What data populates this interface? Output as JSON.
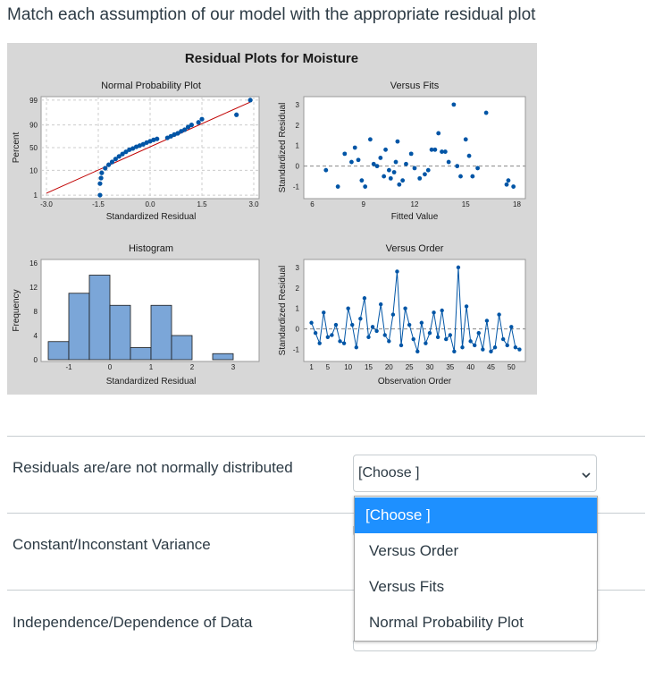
{
  "question": {
    "text": "Match each assumption of our model with the appropriate residual plot"
  },
  "figure": {
    "title": "Residual Plots for Moisture",
    "normal_probability_plot": {
      "title": "Normal Probability Plot",
      "ylabel": "Percent",
      "xlabel": "Standardized Residual",
      "y_ticks": [
        "99",
        "90",
        "50",
        "10",
        "1"
      ],
      "x_ticks": [
        "-3.0",
        "-1.5",
        "0.0",
        "1.5",
        "3.0"
      ]
    },
    "versus_fits": {
      "title": "Versus Fits",
      "ylabel": "Standardized Residual",
      "xlabel": "Fitted Value",
      "y_ticks": [
        "3",
        "2",
        "1",
        "0",
        "-1"
      ],
      "x_ticks": [
        "6",
        "9",
        "12",
        "15",
        "18"
      ]
    },
    "histogram": {
      "title": "Histogram",
      "ylabel": "Frequency",
      "xlabel": "Standardized Residual",
      "y_ticks": [
        "16",
        "12",
        "8",
        "4",
        "0"
      ],
      "x_ticks": [
        "-1",
        "0",
        "1",
        "2",
        "3"
      ]
    },
    "versus_order": {
      "title": "Versus Order",
      "ylabel": "Standardized Residual",
      "xlabel": "Observation Order",
      "y_ticks": [
        "3",
        "2",
        "1",
        "0",
        "-1"
      ],
      "x_ticks": [
        "1",
        "5",
        "10",
        "15",
        "20",
        "25",
        "30",
        "35",
        "40",
        "45",
        "50"
      ]
    },
    "colors": {
      "points": "#0055a6",
      "bars": "#7ba6d8",
      "fit_line": "#c00000",
      "panel": "#ffffff",
      "background": "#d7d7d7"
    }
  },
  "chart_data": [
    {
      "type": "scatter",
      "title": "Normal Probability Plot",
      "xlabel": "Standardized Residual",
      "ylabel": "Percent",
      "x": [
        -1.45,
        -1.45,
        -1.42,
        -1.4,
        -1.3,
        -1.2,
        -1.1,
        -1.0,
        -0.9,
        -0.8,
        -0.7,
        -0.6,
        -0.5,
        -0.4,
        -0.3,
        -0.2,
        -0.1,
        0.0,
        0.1,
        0.2,
        0.5,
        0.6,
        0.7,
        0.8,
        0.9,
        1.0,
        1.1,
        1.2,
        1.4,
        1.5,
        2.5,
        2.9
      ],
      "y": [
        1,
        3,
        5,
        8,
        12,
        16,
        20,
        25,
        30,
        35,
        40,
        45,
        48,
        52,
        55,
        58,
        62,
        65,
        68,
        70,
        72,
        75,
        78,
        80,
        83,
        85,
        88,
        90,
        92,
        94,
        96,
        99
      ],
      "xlim": [
        -3.0,
        3.0
      ],
      "grid": true
    },
    {
      "type": "scatter",
      "title": "Versus Fits",
      "xlabel": "Fitted Value",
      "ylabel": "Standardized Residual",
      "x": [
        6.8,
        7.5,
        7.9,
        8.3,
        8.5,
        8.7,
        8.9,
        9.1,
        9.4,
        9.6,
        9.8,
        10.0,
        10.2,
        10.3,
        10.5,
        10.6,
        10.8,
        10.9,
        11.0,
        11.1,
        11.3,
        11.5,
        11.8,
        12.0,
        12.3,
        12.6,
        12.8,
        13.0,
        13.2,
        13.4,
        13.6,
        13.8,
        14.0,
        14.3,
        14.5,
        14.7,
        15.0,
        15.2,
        15.4,
        15.7,
        16.2,
        17.4,
        17.5,
        17.8
      ],
      "y": [
        -0.2,
        -1.0,
        0.6,
        0.2,
        0.9,
        0.3,
        -0.7,
        -1.0,
        1.3,
        0.1,
        0.0,
        0.4,
        -0.5,
        0.8,
        -0.2,
        -0.6,
        -0.3,
        0.2,
        1.2,
        -0.9,
        -0.7,
        0.1,
        0.6,
        -0.1,
        -0.6,
        -0.4,
        -0.2,
        0.8,
        0.8,
        1.6,
        0.7,
        0.7,
        0.2,
        3.0,
        0.0,
        -0.5,
        1.3,
        0.5,
        -0.5,
        -0.1,
        2.6,
        -0.9,
        -0.7,
        -1.0
      ],
      "xlim": [
        5.5,
        18.5
      ],
      "ylim": [
        -1.5,
        3.3
      ],
      "reference_line": 0
    },
    {
      "type": "bar",
      "title": "Histogram",
      "xlabel": "Standardized Residual",
      "ylabel": "Frequency",
      "categories": [
        "-1.25",
        "-0.75",
        "-0.25",
        "0.25",
        "0.75",
        "1.25",
        "1.75",
        "2.25",
        "2.75"
      ],
      "values": [
        3,
        11,
        14,
        9,
        2,
        9,
        4,
        0,
        1
      ],
      "ylim": [
        0,
        16
      ]
    },
    {
      "type": "line",
      "title": "Versus Order",
      "xlabel": "Observation Order",
      "ylabel": "Standardized Residual",
      "x": [
        1,
        2,
        3,
        4,
        5,
        6,
        7,
        8,
        9,
        10,
        11,
        12,
        13,
        14,
        15,
        16,
        17,
        18,
        19,
        20,
        21,
        22,
        23,
        24,
        25,
        26,
        27,
        28,
        29,
        30,
        31,
        32,
        33,
        34,
        35,
        36,
        37,
        38,
        39,
        40,
        41,
        42,
        43,
        44,
        45,
        46,
        47,
        48,
        49,
        50,
        51,
        52
      ],
      "y": [
        0.3,
        -0.2,
        -0.7,
        0.8,
        -0.4,
        -0.3,
        0.2,
        -0.6,
        -0.7,
        1.0,
        0.2,
        -0.9,
        0.5,
        1.5,
        -0.4,
        0.1,
        -0.1,
        1.2,
        -0.3,
        -0.6,
        0.7,
        2.8,
        -0.8,
        1.0,
        0.2,
        -0.5,
        -1.1,
        0.3,
        -0.7,
        -0.2,
        0.8,
        -0.4,
        0.9,
        -0.5,
        -0.3,
        -1.1,
        3.0,
        -0.9,
        1.1,
        -0.6,
        -0.8,
        -0.2,
        -1.0,
        0.4,
        -1.1,
        -0.9,
        0.7,
        -0.5,
        -0.8,
        0.1,
        -0.9,
        -1.0
      ],
      "xlim": [
        0,
        53
      ],
      "ylim": [
        -1.5,
        3.3
      ],
      "reference_line": 0
    }
  ],
  "rows": [
    {
      "label": "Residuals are/are not normally distributed"
    },
    {
      "label": "Constant/Inconstant Variance"
    },
    {
      "label": "Independence/Dependence of Data"
    }
  ],
  "select": {
    "value": "[Choose ]"
  },
  "dropdown": {
    "options": [
      "[Choose ]",
      "Versus Order",
      "Versus Fits",
      "Normal Probability Plot"
    ],
    "selected_index": 0
  }
}
